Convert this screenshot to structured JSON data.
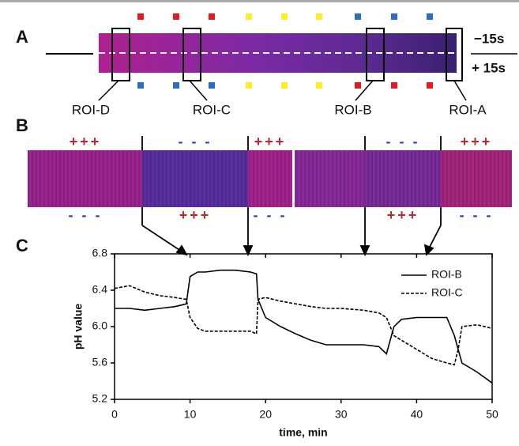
{
  "panels": {
    "a": {
      "label": "A",
      "time_top": "−15s",
      "time_bottom": "+ 15s",
      "rois": [
        "ROI-D",
        "ROI-C",
        "ROI-B",
        "ROI-A"
      ]
    },
    "b": {
      "label": "B",
      "top_signs": [
        "+++",
        "- - -",
        "+++",
        "- - -",
        "+++"
      ],
      "bottom_signs": [
        "- - -",
        "+++",
        "- - -",
        "+++",
        "- - -"
      ]
    },
    "c": {
      "label": "C"
    }
  },
  "chart_data": {
    "type": "line",
    "x_label": "time, min",
    "y_label": "pH value",
    "x": [
      0,
      2,
      4,
      6,
      8,
      9.5,
      10,
      11,
      12,
      14,
      16,
      18,
      18.8,
      19,
      20,
      22,
      24,
      26,
      28,
      30,
      33,
      35,
      36,
      37,
      38,
      40,
      42,
      44,
      45,
      45.5,
      46,
      48,
      50
    ],
    "series": [
      {
        "name": "ROI-B",
        "color": "#000000",
        "dash": "solid",
        "values": [
          6.2,
          6.2,
          6.18,
          6.2,
          6.22,
          6.25,
          6.55,
          6.6,
          6.6,
          6.62,
          6.62,
          6.6,
          6.58,
          6.3,
          6.1,
          6.0,
          5.92,
          5.85,
          5.8,
          5.8,
          5.8,
          5.78,
          5.7,
          6.0,
          6.08,
          6.1,
          6.1,
          6.1,
          5.9,
          5.75,
          5.6,
          5.5,
          5.38
        ]
      },
      {
        "name": "ROI-C",
        "color": "#000000",
        "dash": "dashed",
        "values": [
          6.42,
          6.45,
          6.38,
          6.34,
          6.32,
          6.3,
          6.1,
          5.98,
          5.95,
          5.95,
          5.95,
          5.95,
          5.92,
          6.3,
          6.32,
          6.28,
          6.25,
          6.22,
          6.2,
          6.2,
          6.18,
          6.15,
          6.1,
          5.9,
          5.85,
          5.75,
          5.65,
          5.6,
          5.58,
          5.75,
          6.0,
          6.02,
          5.98
        ]
      }
    ],
    "xlim": [
      0,
      50
    ],
    "xticks": [
      0,
      10,
      20,
      30,
      40,
      50
    ],
    "ylim": [
      5.2,
      6.8
    ],
    "yticks": [
      5.2,
      5.6,
      {
        "value": 6,
        "label": "6.0"
      },
      6.4,
      6.8
    ],
    "legend": "top-right"
  }
}
